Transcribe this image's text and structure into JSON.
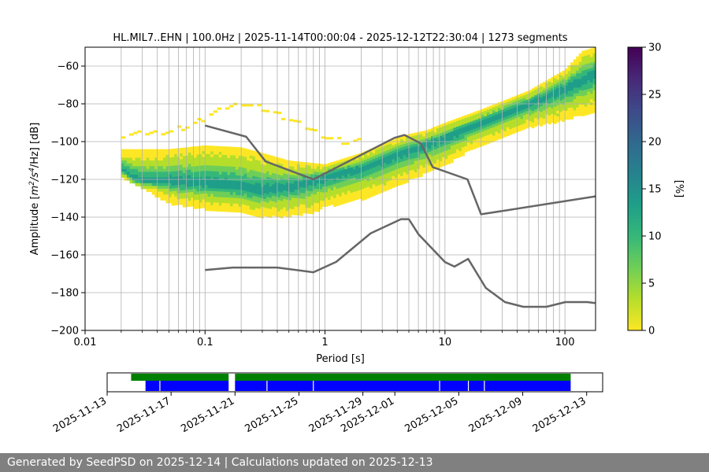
{
  "chart_data": {
    "type": "heatmap",
    "title": "HL.MIL7..EHN | 100.0Hz | 2025-11-14T00:00:04 - 2025-12-12T22:30:04 | 1273 segments",
    "xlabel": "Period [s]",
    "ylabel_parts": {
      "prefix": "Amplitude [",
      "m": "m",
      "exp2": "2",
      "mid": "/s",
      "exp4": "4",
      "suffix": "/Hz] [dB]"
    },
    "x_scale": "log",
    "xlim": [
      0.01,
      180
    ],
    "ylim": [
      -200,
      -50
    ],
    "x_ticks": [
      {
        "v": 0.01,
        "label": "0.01"
      },
      {
        "v": 0.1,
        "label": "0.1"
      },
      {
        "v": 1,
        "label": "1"
      },
      {
        "v": 10,
        "label": "10"
      },
      {
        "v": 100,
        "label": "100"
      }
    ],
    "y_ticks": [
      {
        "v": -60,
        "label": "−60"
      },
      {
        "v": -80,
        "label": "−80"
      },
      {
        "v": -100,
        "label": "−100"
      },
      {
        "v": -120,
        "label": "−120"
      },
      {
        "v": -140,
        "label": "−140"
      },
      {
        "v": -160,
        "label": "−160"
      },
      {
        "v": -180,
        "label": "−180"
      },
      {
        "v": -200,
        "label": "−200"
      }
    ],
    "grid": true,
    "colorbar": {
      "label": "[%]",
      "range": [
        0,
        30
      ],
      "ticks": [
        {
          "v": 0,
          "label": "0"
        },
        {
          "v": 5,
          "label": "5"
        },
        {
          "v": 10,
          "label": "10"
        },
        {
          "v": 15,
          "label": "15"
        },
        {
          "v": 20,
          "label": "20"
        },
        {
          "v": 25,
          "label": "25"
        },
        {
          "v": 30,
          "label": "30"
        }
      ],
      "colormap": [
        "#fde725",
        "#b5de2b",
        "#6ece58",
        "#35b779",
        "#1f9e89",
        "#26828e",
        "#31688e",
        "#3e4989",
        "#482878",
        "#440154"
      ]
    },
    "psd_density": {
      "period_range": [
        0.02,
        180
      ],
      "mode_points": [
        [
          0.02,
          -114
        ],
        [
          0.025,
          -119
        ],
        [
          0.03,
          -121
        ],
        [
          0.05,
          -121
        ],
        [
          0.1,
          -122
        ],
        [
          0.2,
          -124
        ],
        [
          0.3,
          -126
        ],
        [
          0.5,
          -124
        ],
        [
          0.8,
          -121
        ],
        [
          1,
          -119
        ],
        [
          2,
          -114
        ],
        [
          3,
          -110
        ],
        [
          5,
          -105
        ],
        [
          10,
          -98
        ],
        [
          20,
          -90
        ],
        [
          50,
          -80
        ],
        [
          100,
          -72
        ],
        [
          180,
          -64
        ]
      ],
      "upper_edge": [
        [
          0.02,
          -104
        ],
        [
          0.05,
          -104
        ],
        [
          0.1,
          -102
        ],
        [
          0.2,
          -103
        ],
        [
          0.3,
          -106
        ],
        [
          0.5,
          -110
        ],
        [
          1,
          -112
        ],
        [
          2,
          -106
        ],
        [
          4,
          -98
        ],
        [
          5,
          -96
        ],
        [
          7,
          -94
        ],
        [
          10,
          -90
        ],
        [
          20,
          -83
        ],
        [
          50,
          -73
        ],
        [
          100,
          -62
        ],
        [
          140,
          -52
        ],
        [
          180,
          -50
        ]
      ],
      "lower_edge": [
        [
          0.02,
          -118
        ],
        [
          0.03,
          -124
        ],
        [
          0.05,
          -132
        ],
        [
          0.1,
          -135
        ],
        [
          0.2,
          -137
        ],
        [
          0.3,
          -139
        ],
        [
          0.5,
          -139
        ],
        [
          0.8,
          -137
        ],
        [
          1,
          -134
        ],
        [
          2,
          -130
        ],
        [
          3,
          -126
        ],
        [
          5,
          -120
        ],
        [
          7,
          -116
        ],
        [
          10,
          -112
        ],
        [
          15,
          -105
        ],
        [
          20,
          -101
        ],
        [
          30,
          -97
        ],
        [
          50,
          -92
        ],
        [
          100,
          -88
        ],
        [
          180,
          -83
        ]
      ],
      "sparse_outliers": [
        [
          0.02,
          -96
        ],
        [
          0.03,
          -95
        ],
        [
          0.05,
          -94
        ],
        [
          0.08,
          -90
        ],
        [
          0.1,
          -86
        ],
        [
          0.15,
          -81
        ],
        [
          0.2,
          -79
        ],
        [
          0.3,
          -82
        ],
        [
          0.5,
          -88
        ],
        [
          0.8,
          -94
        ],
        [
          1,
          -97
        ],
        [
          1.5,
          -100
        ],
        [
          2,
          -99
        ]
      ]
    },
    "series": [
      {
        "name": "high noise model",
        "color": "#666666",
        "x": [
          0.1,
          0.22,
          0.32,
          0.8,
          3.8,
          4.6,
          6.3,
          7.9,
          15.4,
          20,
          180
        ],
        "y": [
          -91.5,
          -97.4,
          -110.5,
          -120,
          -98,
          -96.5,
          -101,
          -113.5,
          -120,
          -138.5,
          -129
        ]
      },
      {
        "name": "low noise model",
        "color": "#666666",
        "x": [
          0.1,
          0.17,
          0.4,
          0.8,
          1.24,
          2.4,
          4.3,
          5,
          6,
          10,
          12,
          15.6,
          21.9,
          31.6,
          45,
          70,
          101,
          154,
          178
        ],
        "y": [
          -168,
          -166.7,
          -166.7,
          -169.2,
          -163.7,
          -148.6,
          -141.1,
          -141.1,
          -149,
          -163.8,
          -166.2,
          -162.1,
          -177.5,
          -185,
          -187.5,
          -187.5,
          -185,
          -185,
          -185.5
        ]
      }
    ],
    "availability": {
      "type": "timeline",
      "date_ticks": [
        {
          "date": "2025-11-13",
          "label": "2025-11-13"
        },
        {
          "date": "2025-11-17",
          "label": "2025-11-17"
        },
        {
          "date": "2025-11-21",
          "label": "2025-11-21"
        },
        {
          "date": "2025-11-25",
          "label": "2025-11-25"
        },
        {
          "date": "2025-11-29",
          "label": "2025-11-29"
        },
        {
          "date": "2025-12-01",
          "label": "2025-12-01"
        },
        {
          "date": "2025-12-05",
          "label": "2025-12-05"
        },
        {
          "date": "2025-12-09",
          "label": "2025-12-09"
        },
        {
          "date": "2025-12-13",
          "label": "2025-12-13"
        }
      ],
      "range": [
        "2025-11-13",
        "2025-12-14"
      ],
      "green": [
        [
          "2025-11-14.5",
          "2025-11-20.6"
        ],
        [
          "2025-11-21.0",
          "2025-12-12.0"
        ]
      ],
      "blue": [
        [
          "2025-11-15.4",
          "2025-11-20.6"
        ],
        [
          "2025-11-21.0",
          "2025-12-12.0"
        ]
      ],
      "gaps": [
        "2025-11-16.3",
        "2025-11-23.0",
        "2025-11-25.9",
        "2025-12-03.8",
        "2025-12-05.6",
        "2025-12-06.6"
      ],
      "green_color": "#008000",
      "blue_color": "#0000ff"
    }
  },
  "footer": {
    "text": "Generated by SeedPSD on 2025-12-14 | Calculations updated on 2025-12-13",
    "background": "#808080"
  }
}
